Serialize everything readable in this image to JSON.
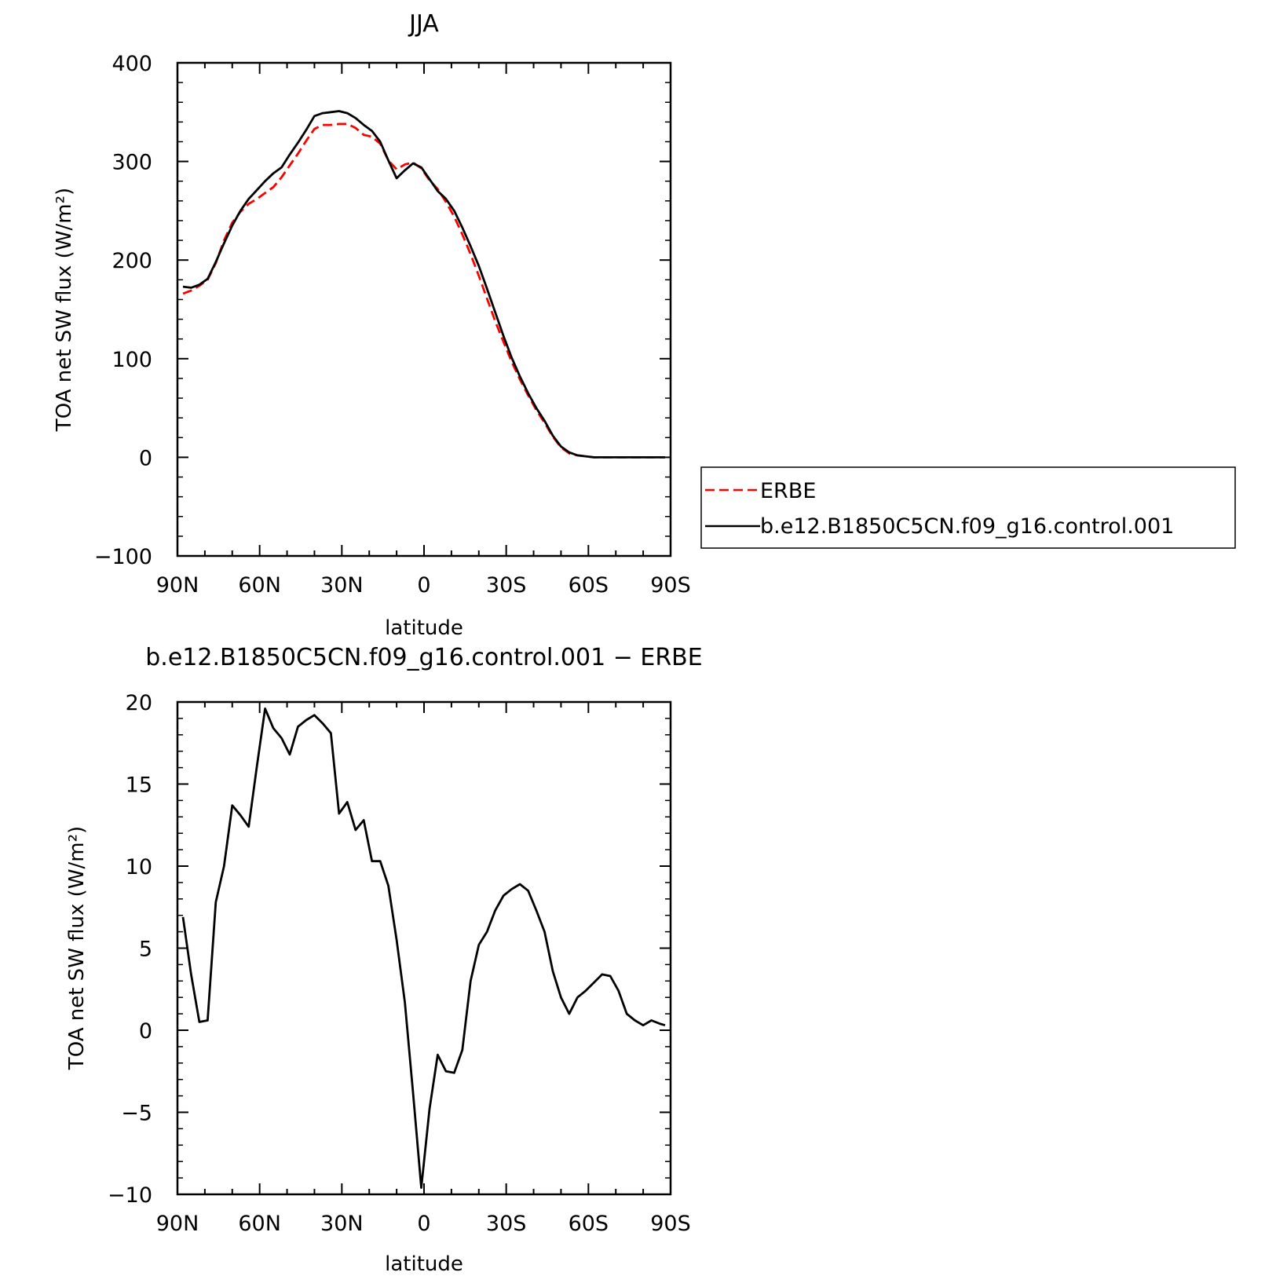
{
  "chart_data": [
    {
      "type": "line",
      "title": "JJA",
      "xlabel": "latitude",
      "ylabel": "TOA net SW flux (W/m²)",
      "xlim": [
        90,
        -90
      ],
      "ylim": [
        -100,
        400
      ],
      "yticks": [
        -100,
        0,
        100,
        200,
        300,
        400
      ],
      "xticks": [
        {
          "value": 90,
          "label": "90N"
        },
        {
          "value": 60,
          "label": "60N"
        },
        {
          "value": 30,
          "label": "30N"
        },
        {
          "value": 0,
          "label": "0"
        },
        {
          "value": -30,
          "label": "30S"
        },
        {
          "value": -60,
          "label": "60S"
        },
        {
          "value": -90,
          "label": "90S"
        }
      ],
      "grid": false,
      "legend_position": "right",
      "series": [
        {
          "name": "ERBE",
          "color": "#ff0000",
          "dash": "dashed",
          "x": [
            88,
            85,
            82,
            79,
            76,
            73,
            70,
            67,
            64,
            61,
            58,
            55,
            52,
            49,
            46,
            43,
            40,
            37,
            34,
            31,
            28,
            25,
            22,
            19,
            16,
            13,
            10,
            7,
            4,
            1,
            -2,
            -5,
            -8,
            -11,
            -14,
            -17,
            -20,
            -23,
            -26,
            -29,
            -32,
            -35,
            -38,
            -41,
            -44,
            -47,
            -50,
            -53,
            -56,
            -59,
            -62,
            -65,
            -68,
            -71,
            -74,
            -77,
            -80,
            -83,
            -86,
            -88
          ],
          "y": [
            166,
            169,
            174,
            180,
            197,
            220,
            238,
            249,
            257,
            262,
            268,
            274,
            284,
            296,
            308,
            321,
            333,
            337,
            337,
            338,
            338,
            334,
            327,
            325,
            318,
            301,
            292,
            297,
            299,
            293,
            281,
            272,
            259,
            244,
            226,
            206,
            184,
            161,
            138,
            117,
            97,
            79,
            63,
            48,
            35,
            21,
            10,
            4,
            2,
            1,
            0,
            0,
            0,
            0,
            0,
            0,
            0,
            0,
            0,
            0
          ]
        },
        {
          "name": "b.e12.B1850C5CN.f09_g16.control.001",
          "color": "#000000",
          "dash": "solid",
          "x": [
            88,
            85,
            82,
            79,
            76,
            73,
            70,
            67,
            64,
            61,
            58,
            55,
            52,
            49,
            46,
            43,
            40,
            37,
            34,
            31,
            28,
            25,
            22,
            19,
            16,
            13,
            10,
            7,
            4,
            1,
            -2,
            -5,
            -8,
            -11,
            -14,
            -17,
            -20,
            -23,
            -26,
            -29,
            -32,
            -35,
            -38,
            -41,
            -44,
            -47,
            -50,
            -53,
            -56,
            -59,
            -62,
            -65,
            -68,
            -71,
            -74,
            -77,
            -80,
            -83,
            -86,
            -88
          ],
          "y": [
            173,
            172,
            175,
            181,
            198,
            217,
            235,
            250,
            262,
            271,
            280,
            288,
            294,
            307,
            319,
            332,
            346,
            349,
            350,
            351,
            349,
            344,
            337,
            331,
            320,
            301,
            283,
            291,
            298,
            294,
            282,
            270,
            262,
            250,
            233,
            214,
            194,
            171,
            147,
            123,
            101,
            82,
            65,
            50,
            37,
            22,
            11,
            5,
            2,
            1,
            0,
            0,
            0,
            0,
            0,
            0,
            0,
            0,
            0,
            0
          ]
        }
      ]
    },
    {
      "type": "line",
      "title": "b.e12.B1850C5CN.f09_g16.control.001 − ERBE",
      "xlabel": "latitude",
      "ylabel": "TOA net SW flux (W/m²)",
      "xlim": [
        90,
        -90
      ],
      "ylim": [
        -10,
        20
      ],
      "yticks": [
        -10,
        -5,
        0,
        5,
        10,
        15,
        20
      ],
      "xticks": [
        {
          "value": 90,
          "label": "90N"
        },
        {
          "value": 60,
          "label": "60N"
        },
        {
          "value": 30,
          "label": "30N"
        },
        {
          "value": 0,
          "label": "0"
        },
        {
          "value": -30,
          "label": "30S"
        },
        {
          "value": -60,
          "label": "60S"
        },
        {
          "value": -90,
          "label": "90S"
        }
      ],
      "grid": false,
      "series": [
        {
          "color": "#000000",
          "dash": "solid",
          "x": [
            88,
            85,
            82,
            79,
            76,
            73,
            70,
            67,
            64,
            61,
            58,
            55,
            52,
            49,
            46,
            43,
            40,
            37,
            34,
            31,
            28,
            25,
            22,
            19,
            16,
            13,
            10,
            7,
            4,
            1,
            -2,
            -5,
            -8,
            -11,
            -14,
            -17,
            -20,
            -23,
            -26,
            -29,
            -32,
            -35,
            -38,
            -41,
            -44,
            -47,
            -50,
            -53,
            -56,
            -59,
            -62,
            -65,
            -68,
            -71,
            -74,
            -77,
            -80,
            -83,
            -86,
            -88
          ],
          "y": [
            6.9,
            3.4,
            0.5,
            0.6,
            7.8,
            10.0,
            13.7,
            13.1,
            12.4,
            16.1,
            19.6,
            18.4,
            17.8,
            16.8,
            18.5,
            18.9,
            19.2,
            18.7,
            18.1,
            13.2,
            13.9,
            12.2,
            12.8,
            10.3,
            10.3,
            8.8,
            5.5,
            1.7,
            -3.8,
            -9.6,
            -4.8,
            -1.5,
            -2.5,
            -2.6,
            -1.2,
            3.0,
            5.2,
            6.0,
            7.3,
            8.2,
            8.6,
            8.9,
            8.5,
            7.3,
            6.0,
            3.6,
            2.0,
            1.0,
            2.0,
            2.4,
            2.9,
            3.4,
            3.3,
            2.4,
            1.0,
            0.6,
            0.3,
            0.6,
            0.4,
            0.3
          ]
        }
      ]
    }
  ]
}
